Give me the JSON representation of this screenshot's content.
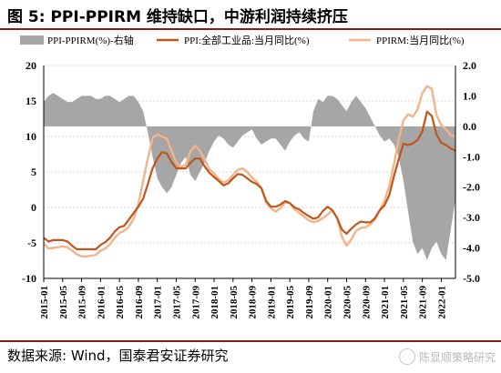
{
  "header": {
    "title": "图 5:  PPI-PPIRM 维持缺口，中游利润持续挤压"
  },
  "footer": {
    "source": "数据来源:  Wind，国泰君安证券研究",
    "watermark": "陈显顺策略研究"
  },
  "chart_data": {
    "type": "area+line",
    "left_axis": {
      "min": -10,
      "max": 20,
      "ticks": [
        -10,
        -5,
        0,
        5,
        10,
        15,
        20
      ]
    },
    "right_axis": {
      "min": -5,
      "max": 2,
      "ticks": [
        "-5.0",
        "-4.0",
        "-3.0",
        "-2.0",
        "-1.0",
        "0.0",
        "1.0",
        "2.0"
      ]
    },
    "x_ticks": [
      "2015-01",
      "2015-05",
      "2015-09",
      "2016-01",
      "2016-05",
      "2016-09",
      "2017-01",
      "2017-05",
      "2017-09",
      "2018-01",
      "2018-05",
      "2018-09",
      "2019-01",
      "2019-05",
      "2019-09",
      "2020-01",
      "2020-05",
      "2020-09",
      "2021-01",
      "2021-05",
      "2021-09",
      "2022-01"
    ],
    "legend": [
      {
        "name": "PPI-PPIRM(%)-右轴",
        "color": "#a6a6a6",
        "kind": "area"
      },
      {
        "name": "PPI:全部工业品:当月同比(%)",
        "color": "#c0561b",
        "kind": "line"
      },
      {
        "name": "PPIRM:当月同比(%)",
        "color": "#f2b48a",
        "kind": "line"
      }
    ],
    "series": [
      {
        "name": "PPI-PPIRM(%)-右轴",
        "axis": "right",
        "values": [
          0.8,
          1.0,
          1.1,
          1.0,
          0.9,
          0.8,
          0.8,
          0.9,
          1.0,
          1.0,
          1.0,
          0.9,
          0.9,
          1.0,
          1.0,
          0.9,
          0.8,
          0.9,
          1.0,
          1.0,
          0.8,
          0.5,
          -0.2,
          -1.0,
          -1.7,
          -2.0,
          -2.2,
          -2.0,
          -1.6,
          -1.2,
          -1.0,
          -1.6,
          -1.8,
          -1.5,
          -1.2,
          -0.8,
          -0.5,
          -0.3,
          -0.4,
          -0.6,
          -0.7,
          -0.5,
          -0.3,
          -0.2,
          -0.1,
          -0.4,
          -0.6,
          -0.5,
          -0.4,
          -0.4,
          -0.6,
          -0.8,
          -0.5,
          -0.3,
          -0.2,
          -0.4,
          -0.5,
          0.5,
          0.9,
          0.8,
          1.0,
          1.0,
          0.9,
          0.7,
          0.5,
          0.8,
          1.0,
          0.8,
          0.6,
          0.3,
          0.0,
          -0.3,
          -0.5,
          -0.4,
          -0.6,
          -1.0,
          -1.8,
          -2.8,
          -3.8,
          -4.2,
          -4.0,
          -4.4,
          -4.0,
          -3.8,
          -4.2,
          -4.4,
          -3.4,
          -2.4
        ]
      },
      {
        "name": "PPI:全部工业品:当月同比(%)",
        "axis": "left",
        "values": [
          -4.3,
          -4.8,
          -4.6,
          -4.6,
          -4.6,
          -4.8,
          -5.4,
          -5.9,
          -5.9,
          -5.9,
          -5.9,
          -5.9,
          -5.3,
          -4.9,
          -4.3,
          -3.4,
          -2.8,
          -2.6,
          -1.7,
          -0.8,
          0.1,
          1.2,
          3.3,
          5.5,
          6.9,
          7.8,
          7.6,
          6.4,
          5.5,
          5.5,
          5.5,
          6.3,
          6.9,
          6.9,
          5.8,
          4.9,
          4.3,
          3.7,
          3.1,
          3.4,
          4.1,
          4.7,
          4.6,
          4.1,
          3.6,
          3.3,
          2.7,
          0.9,
          0.1,
          0.1,
          0.4,
          0.9,
          0.6,
          0.0,
          -0.3,
          -0.8,
          -1.2,
          -1.6,
          -1.4,
          -0.5,
          0.1,
          -0.4,
          -1.5,
          -3.1,
          -3.7,
          -3.0,
          -2.4,
          -2.0,
          -2.1,
          -2.1,
          -1.5,
          -0.4,
          0.3,
          1.7,
          4.4,
          6.8,
          9.0,
          8.8,
          9.0,
          9.5,
          10.7,
          13.5,
          12.9,
          10.3,
          9.1,
          8.8,
          8.3,
          8.0
        ]
      },
      {
        "name": "PPIRM:当月同比(%)",
        "axis": "left",
        "values": [
          -5.1,
          -5.8,
          -5.7,
          -5.6,
          -5.5,
          -5.6,
          -6.1,
          -6.6,
          -6.9,
          -6.9,
          -6.8,
          -6.7,
          -6.1,
          -5.8,
          -5.2,
          -4.3,
          -3.6,
          -3.3,
          -2.7,
          -1.6,
          0.5,
          3.7,
          6.9,
          9.8,
          10.3,
          10.0,
          9.7,
          8.0,
          6.3,
          5.7,
          6.0,
          7.9,
          8.7,
          8.0,
          6.8,
          5.4,
          4.8,
          4.0,
          3.5,
          3.8,
          4.6,
          5.3,
          5.5,
          5.0,
          4.2,
          3.6,
          2.7,
          0.7,
          -0.1,
          -0.6,
          -0.1,
          0.7,
          0.6,
          -0.3,
          -0.8,
          -1.3,
          -1.8,
          -2.1,
          -1.9,
          -1.5,
          -1.0,
          -0.4,
          -1.5,
          -4.1,
          -5.4,
          -4.5,
          -3.3,
          -2.9,
          -2.8,
          -2.4,
          -1.7,
          -0.4,
          0.9,
          3.0,
          6.1,
          9.6,
          12.3,
          13.1,
          12.8,
          13.8,
          16.1,
          17.1,
          16.7,
          13.0,
          11.6,
          11.0,
          10.2,
          10.0
        ]
      }
    ]
  }
}
